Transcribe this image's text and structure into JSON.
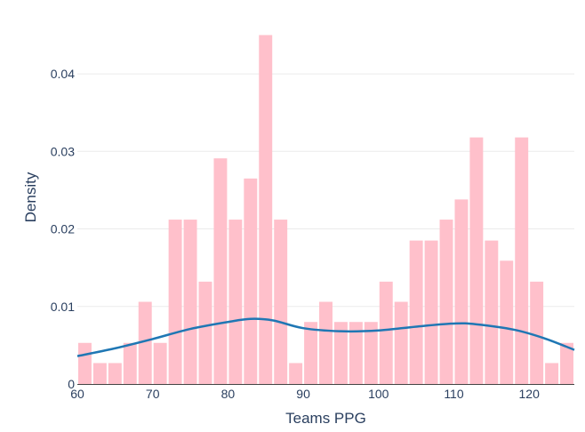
{
  "chart_data": {
    "type": "bar",
    "subtype": "histogram-with-density-curve",
    "title": "",
    "xlabel": "Teams PPG",
    "ylabel": "Density",
    "xlim": [
      60,
      126
    ],
    "ylim": [
      0,
      0.047
    ],
    "x_ticks": [
      60,
      70,
      80,
      90,
      100,
      110,
      120
    ],
    "y_ticks": [
      0,
      0.01,
      0.02,
      0.03,
      0.04
    ],
    "x_tick_labels": [
      "60",
      "70",
      "80",
      "90",
      "100",
      "110",
      "120"
    ],
    "y_tick_labels": [
      "0",
      "0.01",
      "0.02",
      "0.03",
      "0.04"
    ],
    "bin_width": 2,
    "bin_start": 60,
    "values": [
      0.0053,
      0.0027,
      0.0027,
      0.0053,
      0.0106,
      0.0053,
      0.0212,
      0.0212,
      0.0132,
      0.0291,
      0.0212,
      0.0265,
      0.045,
      0.0212,
      0.0027,
      0.008,
      0.0106,
      0.008,
      0.008,
      0.008,
      0.0132,
      0.0106,
      0.0185,
      0.0185,
      0.0212,
      0.0238,
      0.0318,
      0.0185,
      0.0159,
      0.0318,
      0.0132,
      0.0027,
      0.0053
    ],
    "density_curve": {
      "x": [
        60,
        65,
        70,
        75,
        80,
        83,
        86,
        90,
        95,
        100,
        105,
        110,
        113,
        118,
        122,
        126
      ],
      "y": [
        0.0036,
        0.0046,
        0.0058,
        0.0071,
        0.008,
        0.0084,
        0.0082,
        0.0072,
        0.0068,
        0.0069,
        0.0074,
        0.0078,
        0.0077,
        0.007,
        0.0059,
        0.0044
      ]
    },
    "grid": true,
    "legend": "none",
    "colors": {
      "bars": "#ffc0cb",
      "curve": "#1f77b4",
      "grid": "#ebebeb",
      "text": "#2a3f5f"
    }
  }
}
